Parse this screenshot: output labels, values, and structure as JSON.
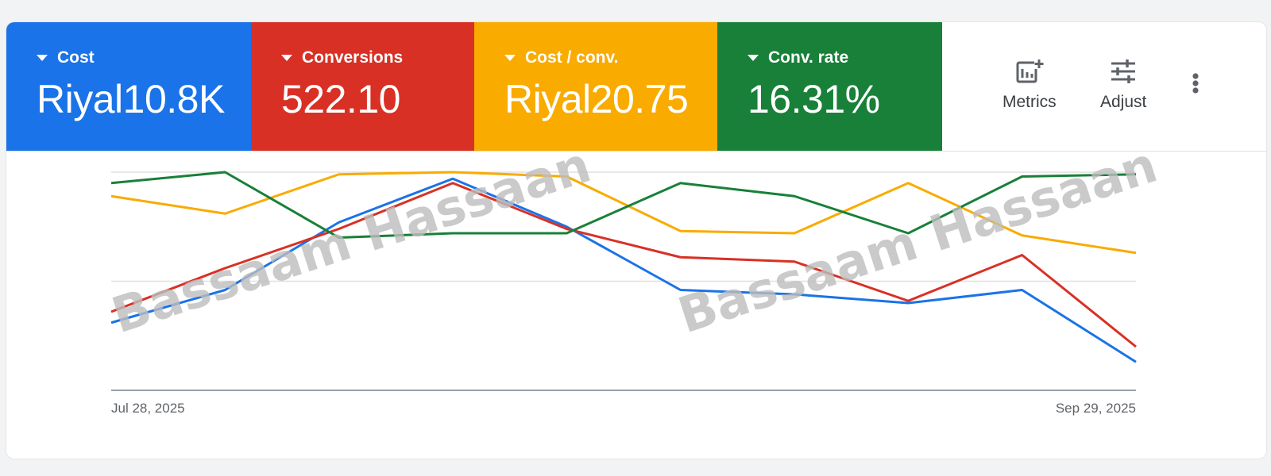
{
  "scorecards": [
    {
      "label": "Cost",
      "value": "Riyal10.8K",
      "color": "#1a73e8"
    },
    {
      "label": "Conversions",
      "value": "522.10",
      "color": "#d93025"
    },
    {
      "label": "Cost / conv.",
      "value": "Riyal20.75",
      "color": "#f9ab00"
    },
    {
      "label": "Conv. rate",
      "value": "16.31%",
      "color": "#188038"
    }
  ],
  "toolbar": {
    "metrics_label": "Metrics",
    "adjust_label": "Adjust",
    "more_icon": "more-vert-icon"
  },
  "watermark": {
    "text": "Bassaam Hassaan"
  },
  "chart_data": {
    "type": "line",
    "x_labels": [
      "Jul 28, 2025",
      "Sep 29, 2025"
    ],
    "y_range": [
      0,
      100
    ],
    "grid": true,
    "x": [
      "Jul 28, 2025",
      "Aug 4, 2025",
      "Aug 11, 2025",
      "Aug 18, 2025",
      "Aug 25, 2025",
      "Sep 1, 2025",
      "Sep 8, 2025",
      "Sep 15, 2025",
      "Sep 22, 2025",
      "Sep 29, 2025"
    ],
    "series": [
      {
        "metric": "Cost",
        "color": "#1a73e8",
        "values": [
          31,
          46,
          77,
          97,
          75,
          46,
          44,
          40,
          46,
          13
        ]
      },
      {
        "metric": "Conversions",
        "color": "#d93025",
        "values": [
          36,
          56,
          74,
          95,
          74,
          61,
          59,
          41,
          62,
          20
        ]
      },
      {
        "metric": "Cost / conv.",
        "color": "#f9ab00",
        "values": [
          89,
          81,
          99,
          100,
          98,
          73,
          72,
          95,
          71,
          63
        ]
      },
      {
        "metric": "Conv. rate",
        "color": "#188038",
        "values": [
          95,
          100,
          70,
          72,
          72,
          95,
          89,
          72,
          98,
          99
        ]
      }
    ]
  }
}
